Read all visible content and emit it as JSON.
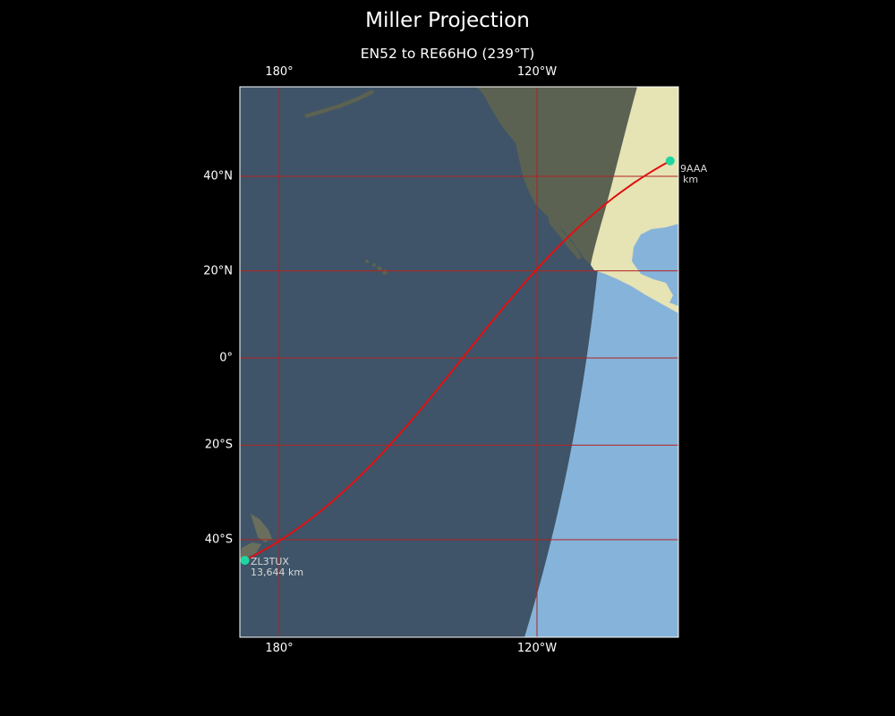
{
  "title": "Miller Projection",
  "subtitle": "EN52 to RE66HO (239°T)",
  "colors": {
    "background": "#000000",
    "ocean_night": "#3f5468",
    "ocean_day": "#86b3d9",
    "land_night": "#5c6252",
    "land_day": "#e6e3b4",
    "grid": "#b22222",
    "path": "#e01010",
    "station": "#1fd6a0",
    "frame": "#ffffff"
  },
  "axes": {
    "lon_ticks": [
      {
        "label": "180°",
        "lon": 180
      },
      {
        "label": "120°W",
        "lon": -120
      }
    ],
    "lat_ticks": [
      {
        "label": "40°N",
        "lat": 40
      },
      {
        "label": "20°N",
        "lat": 20
      },
      {
        "label": "0°",
        "lat": 0
      },
      {
        "label": "20°S",
        "lat": -20
      },
      {
        "label": "40°S",
        "lat": -40
      }
    ]
  },
  "stations": {
    "origin": {
      "label": "ZL3TUX",
      "distance": "13,644 km",
      "lat": -44,
      "lon": 172
    },
    "destination": {
      "label_visible": "9AAA",
      "distance_visible": "km",
      "lat": 43,
      "lon": -89
    }
  },
  "icons": [
    "station-marker-icon"
  ]
}
